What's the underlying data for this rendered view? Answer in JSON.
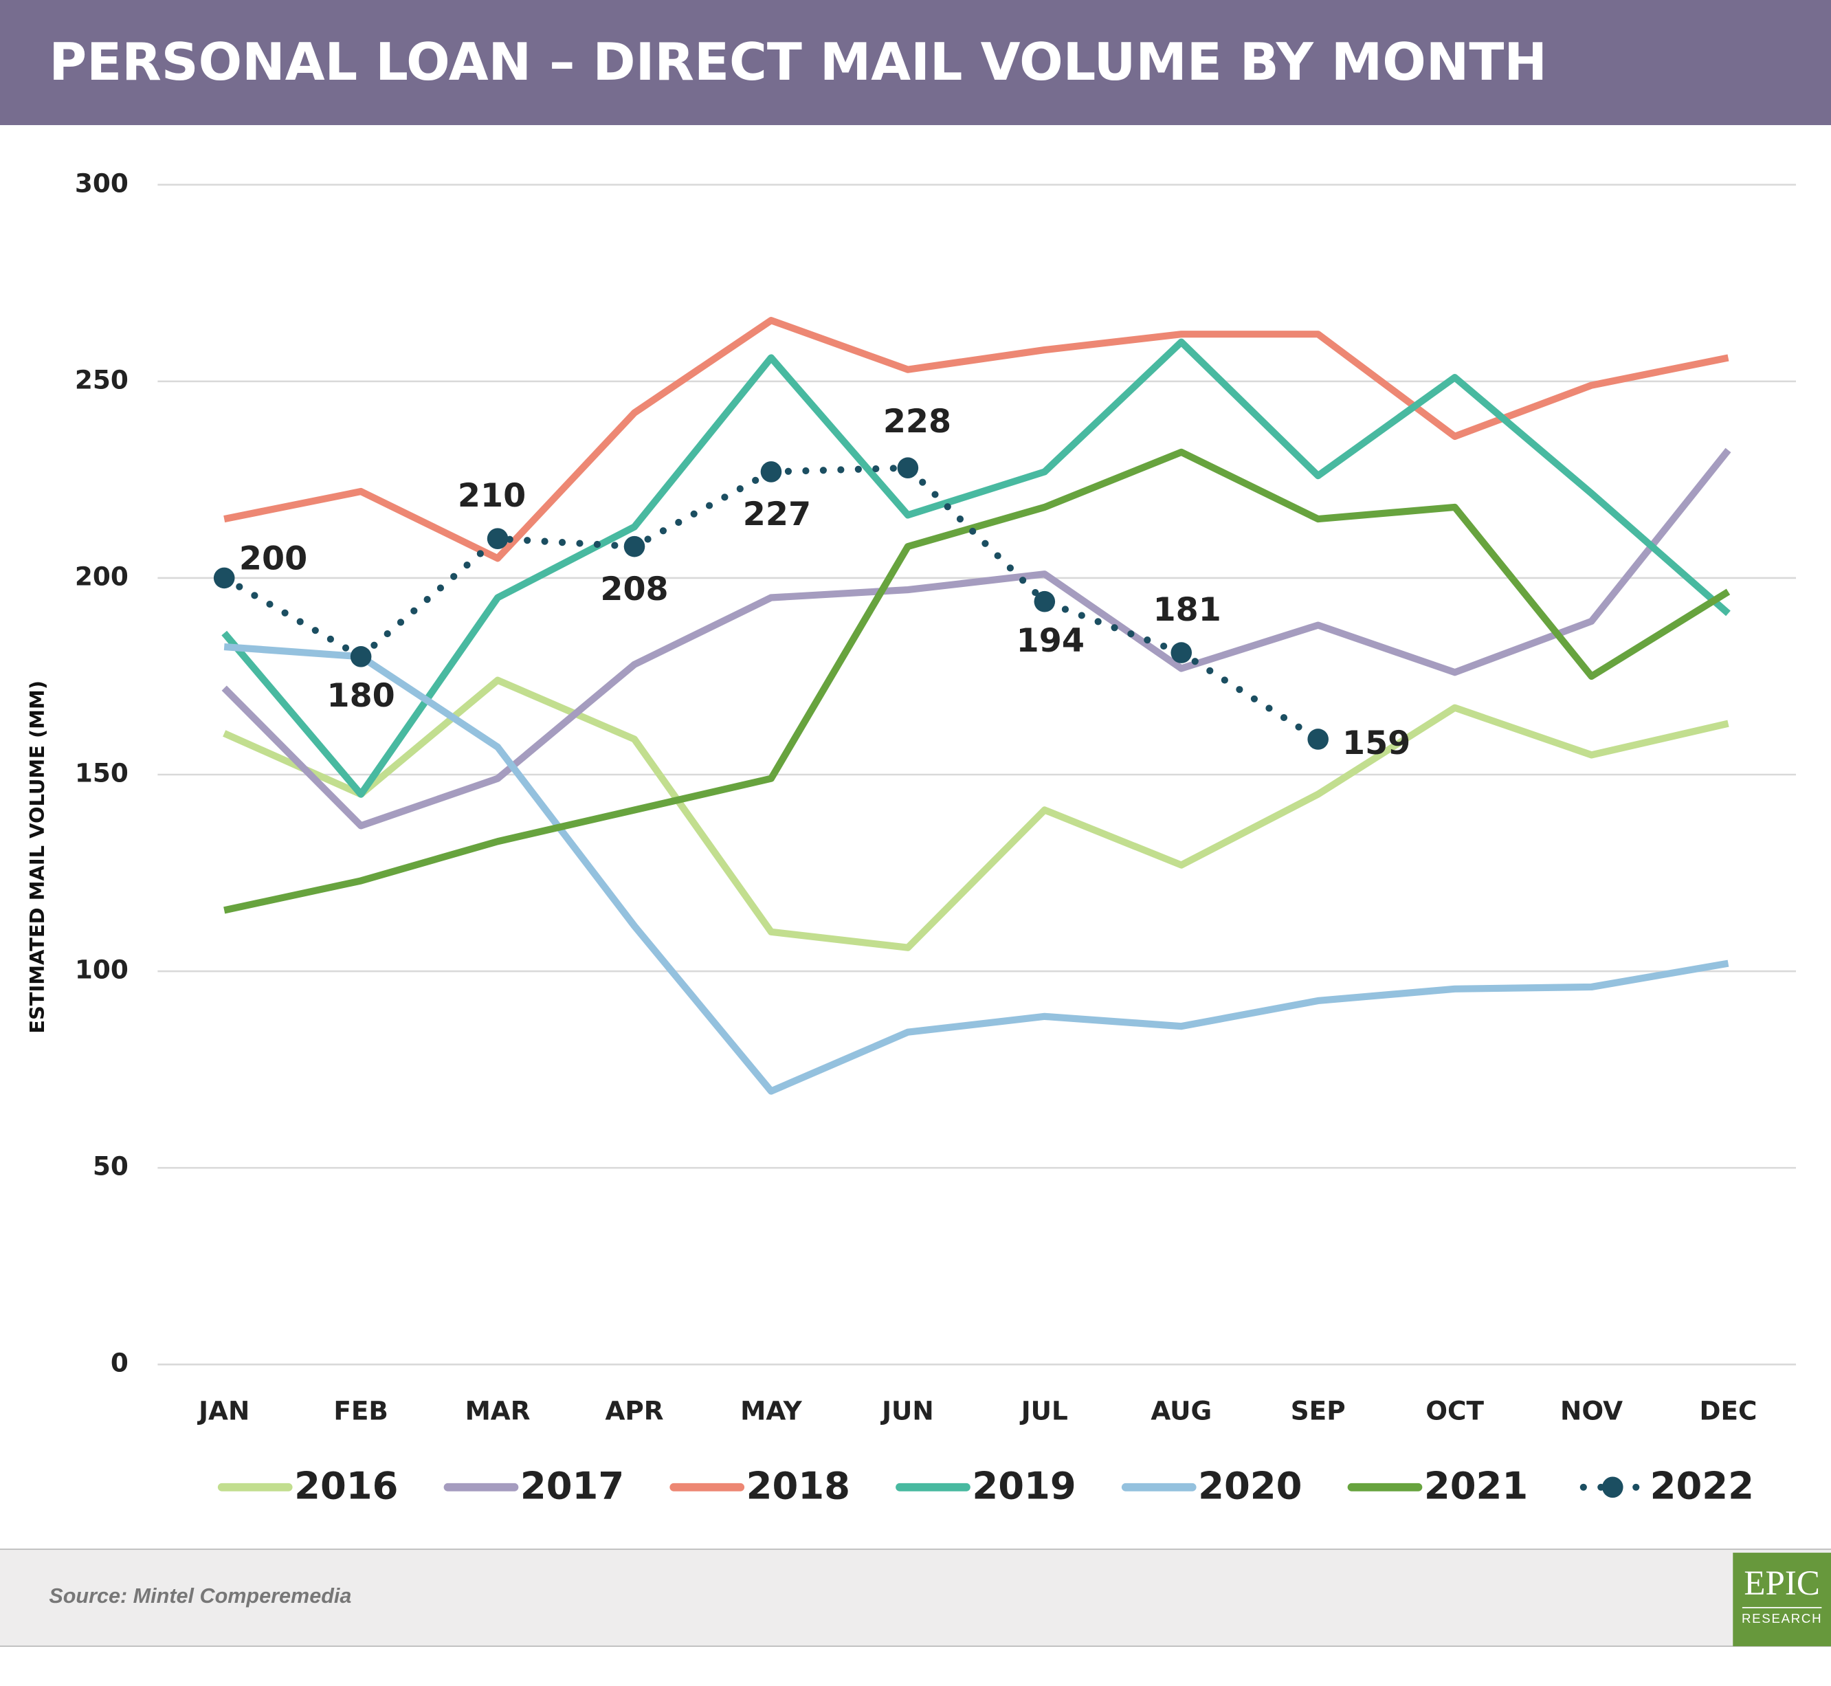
{
  "chart_data": {
    "type": "line",
    "title": "PERSONAL LOAN – DIRECT MAIL VOLUME BY MONTH",
    "y_label": "ESTIMATED MAIL VOLUME (MM)",
    "categories": [
      "JAN",
      "FEB",
      "MAR",
      "APR",
      "MAY",
      "JUN",
      "JUL",
      "AUG",
      "SEP",
      "OCT",
      "NOV",
      "DEC"
    ],
    "ylim": [
      0,
      300
    ],
    "yticks": [
      0,
      50,
      100,
      150,
      200,
      250,
      300
    ],
    "grid": true,
    "legend": "bottom",
    "series": [
      {
        "name": "2016",
        "color": "#c2de8f",
        "values": [
          160.5,
          145,
          174,
          159,
          110,
          106,
          141,
          127,
          145,
          167,
          155,
          163
        ]
      },
      {
        "name": "2017",
        "color": "#a59cbf",
        "values": [
          172,
          137,
          149,
          178,
          195,
          197,
          201,
          177,
          188,
          176,
          189,
          232.5
        ]
      },
      {
        "name": "2018",
        "color": "#ed8773",
        "values": [
          215,
          222,
          205,
          242,
          265.5,
          253,
          258,
          262,
          262,
          236,
          249,
          256
        ]
      },
      {
        "name": "2019",
        "color": "#48b9a0",
        "values": [
          186,
          145,
          195,
          213,
          256,
          216,
          227,
          260,
          226,
          251,
          221.5,
          191
        ]
      },
      {
        "name": "2020",
        "color": "#94c1de",
        "values": [
          182.5,
          180,
          157,
          111.5,
          69.5,
          84.5,
          88.5,
          86,
          92.5,
          95.5,
          96,
          102
        ]
      },
      {
        "name": "2021",
        "color": "#67a33e",
        "values": [
          115.5,
          123,
          133,
          141,
          149,
          208,
          218,
          232,
          215,
          218,
          175,
          196.5
        ]
      },
      {
        "name": "2022",
        "color": "#1b4e61",
        "style": "dotted",
        "markers": true,
        "data_labels": true,
        "values": [
          200,
          180,
          210,
          208,
          227,
          228,
          194,
          181,
          159,
          null,
          null,
          null
        ]
      }
    ]
  },
  "footer": {
    "source": "Source: Mintel Comperemedia",
    "logo_top": "EPIC",
    "logo_bottom": "RESEARCH"
  }
}
